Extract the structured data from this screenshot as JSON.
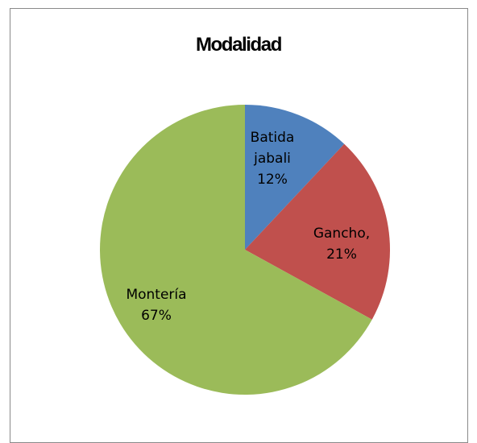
{
  "chart_data": {
    "type": "pie",
    "title": "Modalidad",
    "slices": [
      {
        "label_lines": [
          "Batida",
          "jabali",
          "12%"
        ],
        "value": 12,
        "color": "#4F81BD"
      },
      {
        "label_lines": [
          "Gancho,",
          "21%"
        ],
        "value": 21,
        "color": "#C0504D"
      },
      {
        "label_lines": [
          "Montería",
          "67%"
        ],
        "value": 67,
        "color": "#9BBB59"
      }
    ]
  }
}
